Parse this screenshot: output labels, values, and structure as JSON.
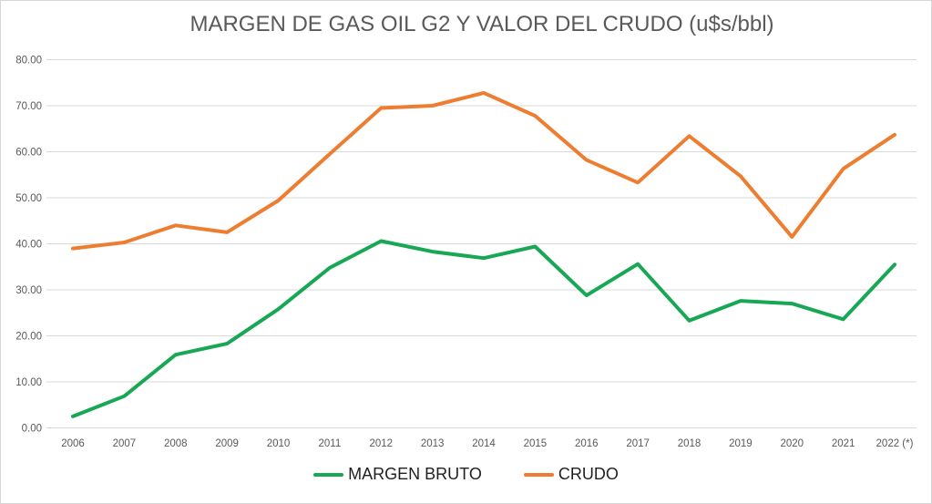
{
  "title": "MARGEN DE GAS OIL G2 Y VALOR DEL CRUDO (u$s/bbl)",
  "chart_data": {
    "type": "line",
    "title": "MARGEN DE GAS OIL G2 Y VALOR DEL CRUDO (u$s/bbl)",
    "categories": [
      "2006",
      "2007",
      "2008",
      "2009",
      "2010",
      "2011",
      "2012",
      "2013",
      "2014",
      "2015",
      "2016",
      "2017",
      "2018",
      "2019",
      "2020",
      "2021",
      "2022 (*)"
    ],
    "series": [
      {
        "name": "MARGEN BRUTO",
        "color": "#18a855",
        "values": [
          2.5,
          6.9,
          15.9,
          18.3,
          25.8,
          34.8,
          40.6,
          38.3,
          36.9,
          39.4,
          28.8,
          35.6,
          23.3,
          27.6,
          27.0,
          23.6,
          35.5
        ]
      },
      {
        "name": "CRUDO",
        "color": "#ed7d31",
        "values": [
          39.0,
          40.3,
          44.0,
          42.5,
          49.4,
          59.5,
          69.5,
          70.0,
          72.8,
          67.8,
          58.2,
          53.3,
          63.4,
          54.7,
          41.5,
          56.3,
          63.7
        ]
      }
    ],
    "y_ticks": [
      "0.00",
      "10.00",
      "20.00",
      "30.00",
      "40.00",
      "50.00",
      "60.00",
      "70.00",
      "80.00"
    ],
    "ylim": [
      0,
      80
    ],
    "grid": true,
    "legend_position": "bottom",
    "xlabel": "",
    "ylabel": ""
  },
  "colors": {
    "title_text": "#595959",
    "axis_text": "#595959",
    "gridline": "#d9d9d9",
    "legend_text": "#1f1f1f",
    "background": "#ffffff"
  }
}
